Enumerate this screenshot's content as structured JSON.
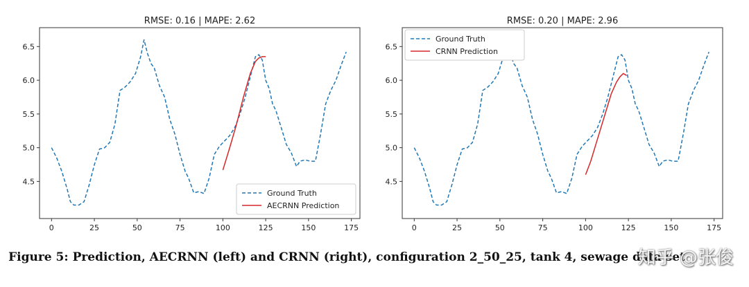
{
  "chart_data": [
    {
      "type": "line",
      "title": "RMSE: 0.16 | MAPE: 2.62",
      "xlabel": "",
      "ylabel": "",
      "xlim": [
        -7,
        180
      ],
      "ylim": [
        3.95,
        6.78
      ],
      "xticks": [
        0,
        25,
        50,
        75,
        100,
        125,
        150,
        175
      ],
      "yticks": [
        4.5,
        5.0,
        5.5,
        6.0,
        6.5
      ],
      "ytick_labels": [
        "4.5",
        "5.0",
        "5.5",
        "6.0",
        "6.5"
      ],
      "legend_position": "lower-right",
      "series": [
        {
          "name": "Ground Truth",
          "style": "dashed",
          "color": "#1f77b4",
          "x": [
            0,
            3,
            6,
            9,
            11,
            13,
            16,
            19,
            22,
            25,
            28,
            31,
            34,
            37,
            40,
            43,
            46,
            49,
            52,
            54,
            56,
            58,
            60,
            63,
            66,
            69,
            72,
            75,
            78,
            80,
            83,
            86,
            89,
            92,
            95,
            98,
            101,
            104,
            107,
            110,
            113,
            116,
            119,
            121,
            123,
            125,
            127,
            129,
            131,
            134,
            137,
            140,
            143,
            145,
            148,
            151,
            154,
            157,
            160,
            163,
            166,
            169,
            172
          ],
          "y": [
            5.0,
            4.85,
            4.65,
            4.4,
            4.2,
            4.15,
            4.15,
            4.2,
            4.45,
            4.75,
            4.98,
            5.0,
            5.08,
            5.35,
            5.85,
            5.9,
            5.98,
            6.1,
            6.35,
            6.6,
            6.4,
            6.25,
            6.18,
            5.92,
            5.75,
            5.42,
            5.2,
            4.9,
            4.65,
            4.55,
            4.33,
            4.35,
            4.32,
            4.55,
            4.9,
            5.02,
            5.1,
            5.18,
            5.3,
            5.5,
            5.75,
            6.05,
            6.35,
            6.38,
            6.3,
            6.0,
            5.88,
            5.65,
            5.55,
            5.3,
            5.05,
            4.92,
            4.72,
            4.8,
            4.82,
            4.8,
            4.8,
            5.2,
            5.65,
            5.85,
            6.0,
            6.22,
            6.42
          ]
        },
        {
          "name": "AECRNN Prediction",
          "style": "solid",
          "color": "#d62728",
          "x": [
            100,
            104,
            108,
            112,
            116,
            119,
            121,
            123,
            125
          ],
          "y": [
            4.67,
            5.0,
            5.35,
            5.75,
            6.1,
            6.28,
            6.33,
            6.35,
            6.35
          ]
        }
      ]
    },
    {
      "type": "line",
      "title": "RMSE: 0.20 | MAPE: 2.96",
      "xlabel": "",
      "ylabel": "",
      "xlim": [
        -7,
        180
      ],
      "ylim": [
        3.95,
        6.78
      ],
      "xticks": [
        0,
        25,
        50,
        75,
        100,
        125,
        150,
        175
      ],
      "yticks": [
        4.5,
        5.0,
        5.5,
        6.0,
        6.5
      ],
      "ytick_labels": [
        "4.5",
        "5.0",
        "5.5",
        "6.0",
        "6.5"
      ],
      "legend_position": "upper-left",
      "series": [
        {
          "name": "Ground Truth",
          "style": "dashed",
          "color": "#1f77b4",
          "x": [
            0,
            3,
            6,
            9,
            11,
            13,
            16,
            19,
            22,
            25,
            28,
            31,
            34,
            37,
            40,
            43,
            46,
            49,
            52,
            54,
            56,
            58,
            60,
            63,
            66,
            69,
            72,
            75,
            78,
            80,
            83,
            86,
            89,
            92,
            95,
            98,
            101,
            104,
            107,
            110,
            113,
            116,
            119,
            121,
            123,
            125,
            127,
            129,
            131,
            134,
            137,
            140,
            143,
            145,
            148,
            151,
            154,
            157,
            160,
            163,
            166,
            169,
            172
          ],
          "y": [
            5.0,
            4.85,
            4.65,
            4.4,
            4.2,
            4.15,
            4.15,
            4.2,
            4.45,
            4.75,
            4.98,
            5.0,
            5.08,
            5.35,
            5.85,
            5.9,
            5.98,
            6.1,
            6.35,
            6.6,
            6.4,
            6.25,
            6.18,
            5.92,
            5.75,
            5.42,
            5.2,
            4.9,
            4.65,
            4.55,
            4.33,
            4.35,
            4.32,
            4.55,
            4.9,
            5.02,
            5.1,
            5.18,
            5.3,
            5.5,
            5.75,
            6.05,
            6.35,
            6.38,
            6.3,
            6.0,
            5.88,
            5.65,
            5.55,
            5.3,
            5.05,
            4.92,
            4.72,
            4.8,
            4.82,
            4.8,
            4.8,
            5.2,
            5.65,
            5.85,
            6.0,
            6.22,
            6.42
          ]
        },
        {
          "name": "CRNN Prediction",
          "style": "solid",
          "color": "#d62728",
          "x": [
            100,
            103,
            106,
            109,
            112,
            115,
            118,
            120,
            122,
            124
          ],
          "y": [
            4.6,
            4.8,
            5.05,
            5.3,
            5.55,
            5.8,
            5.97,
            6.05,
            6.1,
            6.07
          ]
        }
      ]
    }
  ],
  "caption": "Figure 5: Prediction, AECRNN (left) and CRNN (right), configuration 2_50_25, tank 4, sewage data set",
  "watermark": "知乎 @张俊"
}
